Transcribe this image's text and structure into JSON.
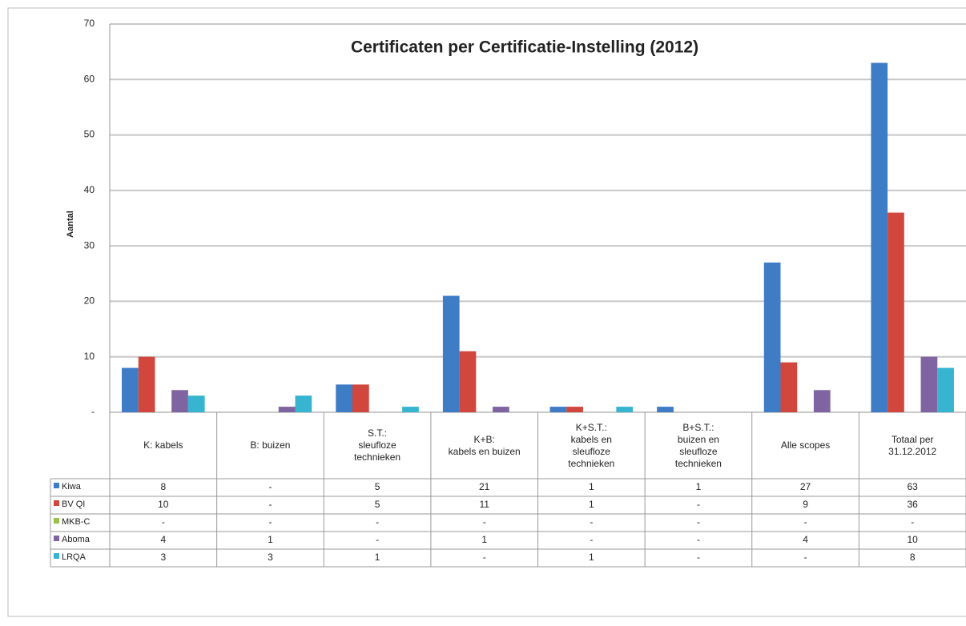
{
  "chart_data": {
    "type": "bar",
    "title": "Certificaten per Certificatie-Instelling (2012)",
    "y_label": "Aantal",
    "categories": [
      "K: kabels",
      "B: buizen",
      "S.T.:\nsleufloze\ntechnieken",
      "K+B:\nkabels en buizen",
      "K+S.T.:\nkabels en\nsleufloze\ntechnieken",
      "B+S.T.:\nbuizen en\nsleufloze\ntechnieken",
      "Alle scopes",
      "Totaal per\n31.12.2012"
    ],
    "series": [
      {
        "name": "Kiwa",
        "color": "#3f7cc6",
        "values": [
          8,
          null,
          5,
          21,
          1,
          1,
          27,
          63
        ],
        "value_labels": [
          "8",
          "-",
          "5",
          "21",
          "1",
          "1",
          "27",
          "63"
        ]
      },
      {
        "name": "BV QI",
        "color": "#d2473d",
        "values": [
          10,
          null,
          5,
          11,
          1,
          null,
          9,
          36
        ],
        "value_labels": [
          "10",
          "-",
          "5",
          "11",
          "1",
          "-",
          "9",
          "36"
        ]
      },
      {
        "name": "MKB-C",
        "color": "#98c04a",
        "values": [
          null,
          null,
          null,
          null,
          null,
          null,
          null,
          null
        ],
        "value_labels": [
          "-",
          "-",
          "-",
          "-",
          "-",
          "-",
          "-",
          "-"
        ]
      },
      {
        "name": "Aboma",
        "color": "#8064a2",
        "values": [
          4,
          1,
          null,
          1,
          null,
          null,
          4,
          10
        ],
        "value_labels": [
          "4",
          "1",
          "-",
          "1",
          "-",
          "-",
          "4",
          "10"
        ]
      },
      {
        "name": "LRQA",
        "color": "#36b4d0",
        "values": [
          3,
          3,
          1,
          null,
          1,
          null,
          null,
          8
        ],
        "value_labels": [
          "3",
          "3",
          "1",
          "-",
          "1",
          "-",
          "-",
          "8"
        ]
      }
    ],
    "ylim": [
      0,
      70
    ],
    "yticks": [
      {
        "value": 0,
        "label": "-"
      },
      10,
      20,
      30,
      40,
      50,
      60,
      70
    ],
    "grid": true
  }
}
